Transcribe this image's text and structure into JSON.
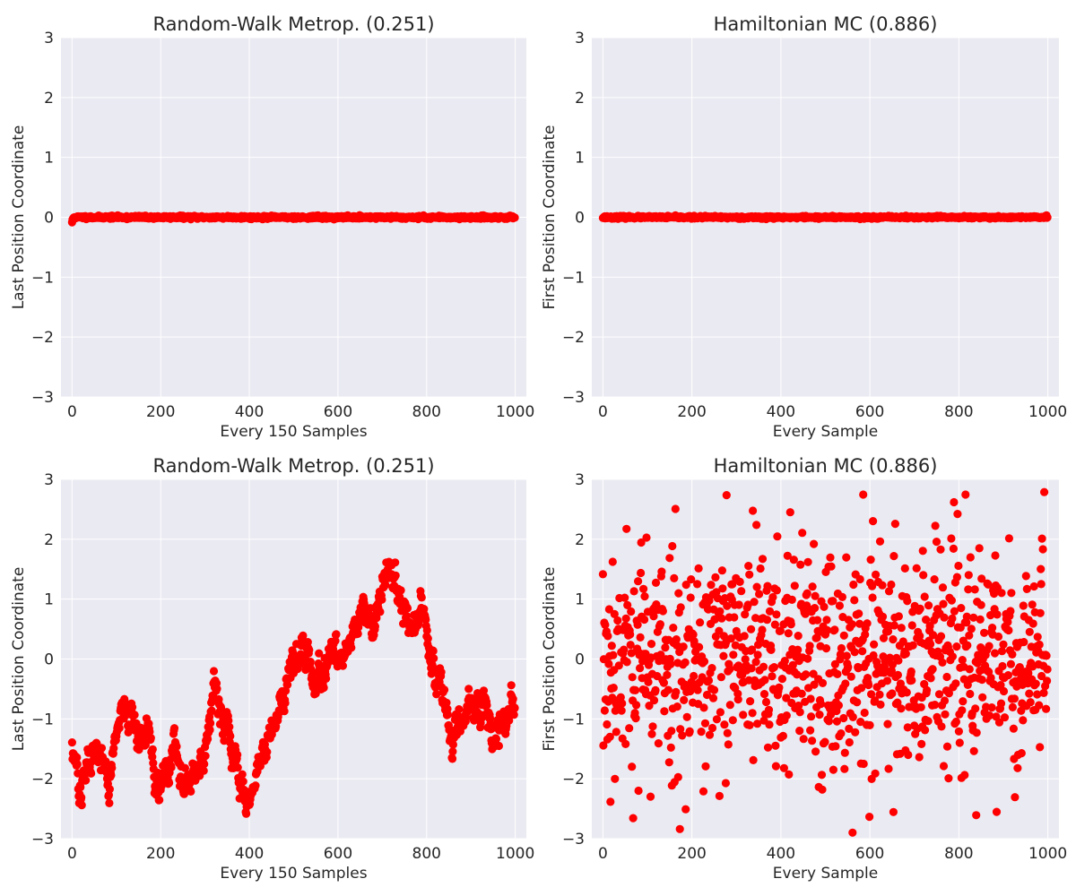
{
  "chart_data": [
    {
      "type": "scatter",
      "title": "Random-Walk Metrop. (0.251)",
      "xlabel": "Every 150 Samples",
      "ylabel": "Last Position Coordinate",
      "xlim": [
        -25,
        1025
      ],
      "ylim": [
        -3,
        3
      ],
      "xticks": [
        0,
        200,
        400,
        600,
        800,
        1000
      ],
      "xtick_labels": [
        "0",
        "200",
        "400",
        "600",
        "800",
        "1000"
      ],
      "yticks": [
        -3,
        -2,
        -1,
        0,
        1,
        2,
        3
      ],
      "ytick_labels": [
        "−3",
        "−2",
        "−1",
        "0",
        "1",
        "2",
        "3"
      ],
      "grid": true,
      "marker_color": "#ff0000",
      "n_points": 1000,
      "x_start": 0,
      "x_step": 1,
      "generator": "flat",
      "amplitude": 0.012,
      "anchors": [
        [
          0,
          -0.08
        ],
        [
          2,
          -0.03
        ],
        [
          5,
          0.0
        ],
        [
          1000,
          0.0
        ]
      ],
      "seed": 11
    },
    {
      "type": "scatter",
      "title": "Hamiltonian MC (0.886)",
      "xlabel": "Every Sample",
      "ylabel": "First Position Coordinate",
      "xlim": [
        -25,
        1025
      ],
      "ylim": [
        -3,
        3
      ],
      "xticks": [
        0,
        200,
        400,
        600,
        800,
        1000
      ],
      "xtick_labels": [
        "0",
        "200",
        "400",
        "600",
        "800",
        "1000"
      ],
      "yticks": [
        -3,
        -2,
        -1,
        0,
        1,
        2,
        3
      ],
      "ytick_labels": [
        "−3",
        "−2",
        "−1",
        "0",
        "1",
        "2",
        "3"
      ],
      "grid": true,
      "marker_color": "#ff0000",
      "n_points": 1000,
      "x_start": 0,
      "x_step": 1,
      "generator": "flat",
      "amplitude": 0.01,
      "anchors": [
        [
          0,
          0.0
        ],
        [
          1000,
          0.0
        ]
      ],
      "seed": 23
    },
    {
      "type": "scatter",
      "title": "Random-Walk Metrop. (0.251)",
      "xlabel": "Every 150 Samples",
      "ylabel": "Last Position Coordinate",
      "xlim": [
        -25,
        1025
      ],
      "ylim": [
        -3,
        3
      ],
      "xticks": [
        0,
        200,
        400,
        600,
        800,
        1000
      ],
      "xtick_labels": [
        "0",
        "200",
        "400",
        "600",
        "800",
        "1000"
      ],
      "yticks": [
        -3,
        -2,
        -1,
        0,
        1,
        2,
        3
      ],
      "ytick_labels": [
        "−3",
        "−2",
        "−1",
        "0",
        "1",
        "2",
        "3"
      ],
      "grid": true,
      "marker_color": "#ff0000",
      "n_points": 1000,
      "x_start": 0,
      "x_step": 1,
      "generator": "walk",
      "amplitude": 0.3,
      "anchors": [
        [
          0,
          -1.4
        ],
        [
          20,
          -2.2
        ],
        [
          40,
          -1.7
        ],
        [
          60,
          -1.3
        ],
        [
          80,
          -2.1
        ],
        [
          110,
          -0.9
        ],
        [
          130,
          -1.1
        ],
        [
          150,
          -1.5
        ],
        [
          170,
          -1.2
        ],
        [
          190,
          -2.2
        ],
        [
          230,
          -1.6
        ],
        [
          260,
          -2.0
        ],
        [
          300,
          -1.6
        ],
        [
          320,
          -0.6
        ],
        [
          340,
          -0.9
        ],
        [
          360,
          -1.4
        ],
        [
          395,
          -2.4
        ],
        [
          420,
          -1.9
        ],
        [
          450,
          -1.0
        ],
        [
          480,
          -0.6
        ],
        [
          500,
          0.1
        ],
        [
          520,
          0.3
        ],
        [
          540,
          -0.2
        ],
        [
          560,
          -0.4
        ],
        [
          590,
          0.2
        ],
        [
          610,
          -0.2
        ],
        [
          640,
          0.6
        ],
        [
          660,
          0.9
        ],
        [
          680,
          0.7
        ],
        [
          700,
          1.2
        ],
        [
          725,
          1.6
        ],
        [
          740,
          0.8
        ],
        [
          760,
          0.5
        ],
        [
          790,
          0.8
        ],
        [
          805,
          0.1
        ],
        [
          830,
          -0.3
        ],
        [
          840,
          -0.7
        ],
        [
          860,
          -1.4
        ],
        [
          880,
          -1.0
        ],
        [
          900,
          -0.7
        ],
        [
          930,
          -1.0
        ],
        [
          960,
          -1.4
        ],
        [
          990,
          -1.0
        ],
        [
          1000,
          -0.9
        ]
      ],
      "seed": 37
    },
    {
      "type": "scatter",
      "title": "Hamiltonian MC (0.886)",
      "xlabel": "Every Sample",
      "ylabel": "First Position Coordinate",
      "xlim": [
        -25,
        1025
      ],
      "ylim": [
        -3,
        3
      ],
      "xticks": [
        0,
        200,
        400,
        600,
        800,
        1000
      ],
      "xtick_labels": [
        "0",
        "200",
        "400",
        "600",
        "800",
        "1000"
      ],
      "yticks": [
        -3,
        -2,
        -1,
        0,
        1,
        2,
        3
      ],
      "ytick_labels": [
        "−3",
        "−2",
        "−1",
        "0",
        "1",
        "2",
        "3"
      ],
      "grid": true,
      "marker_color": "#ff0000",
      "n_points": 1000,
      "x_start": 0,
      "x_step": 1,
      "generator": "normal",
      "amplitude": 1.0,
      "anchors": [
        [
          0,
          0.0
        ],
        [
          1000,
          0.0
        ]
      ],
      "seed": 53
    }
  ]
}
